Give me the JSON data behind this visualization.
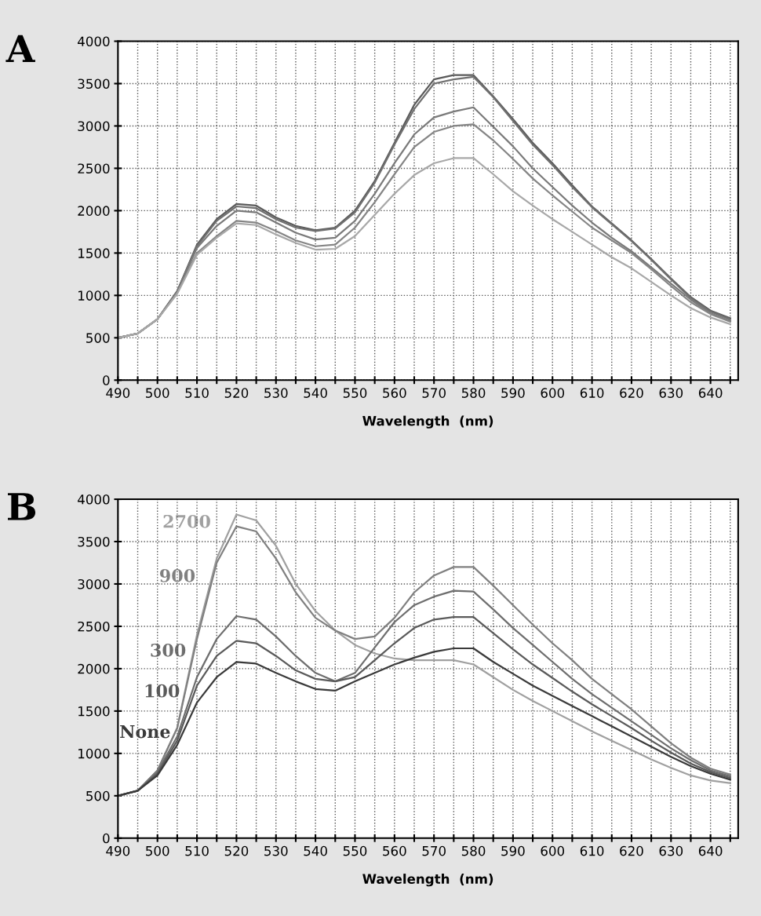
{
  "chart_data": [
    {
      "type": "line",
      "title": "A",
      "xlabel": "Wavelength  (nm)",
      "grid": true,
      "xlim": [
        490,
        647
      ],
      "ylim": [
        0,
        4000
      ],
      "xticks": [
        490,
        {
          "value": 495,
          "label": null
        },
        500,
        {
          "value": 505,
          "label": null
        },
        510,
        {
          "value": 515,
          "label": null
        },
        520,
        {
          "value": 525,
          "label": null
        },
        530,
        {
          "value": 535,
          "label": null
        },
        540,
        {
          "value": 545,
          "label": null
        },
        550,
        {
          "value": 555,
          "label": null
        },
        560,
        {
          "value": 565,
          "label": null
        },
        570,
        {
          "value": 575,
          "label": null
        },
        580,
        {
          "value": 585,
          "label": null
        },
        590,
        {
          "value": 595,
          "label": null
        },
        600,
        {
          "value": 605,
          "label": null
        },
        610,
        {
          "value": 615,
          "label": null
        },
        620,
        {
          "value": 625,
          "label": null
        },
        630,
        {
          "value": 635,
          "label": null
        },
        640,
        {
          "value": 645,
          "label": null
        }
      ],
      "yticks": [
        0,
        500,
        1000,
        1500,
        2000,
        2500,
        3000,
        3500,
        4000
      ],
      "x": [
        490,
        495,
        500,
        505,
        510,
        515,
        520,
        525,
        530,
        535,
        540,
        545,
        550,
        555,
        560,
        565,
        570,
        575,
        580,
        585,
        590,
        595,
        600,
        605,
        610,
        615,
        620,
        625,
        630,
        635,
        640,
        645
      ],
      "series": [
        {
          "color": "#5a5a5a",
          "values": [
            500,
            550,
            720,
            1050,
            1600,
            1900,
            2080,
            2060,
            1920,
            1820,
            1770,
            1800,
            2000,
            2350,
            2800,
            3250,
            3550,
            3600,
            3600,
            3350,
            3080,
            2800,
            2560,
            2300,
            2050,
            1850,
            1650,
            1430,
            1200,
            980,
            820,
            730
          ]
        },
        {
          "color": "#707070",
          "values": [
            500,
            550,
            720,
            1050,
            1580,
            1880,
            2050,
            2030,
            1900,
            1800,
            1760,
            1790,
            1980,
            2330,
            2780,
            3200,
            3500,
            3550,
            3580,
            3340,
            3060,
            2780,
            2540,
            2280,
            2040,
            1840,
            1640,
            1420,
            1190,
            970,
            810,
            720
          ]
        },
        {
          "color": "#7a7a7a",
          "values": [
            500,
            550,
            720,
            1040,
            1560,
            1820,
            2000,
            1980,
            1860,
            1740,
            1660,
            1680,
            1880,
            2200,
            2560,
            2900,
            3100,
            3170,
            3220,
            2990,
            2760,
            2500,
            2280,
            2060,
            1860,
            1680,
            1520,
            1330,
            1140,
            950,
            790,
            700
          ]
        },
        {
          "color": "#858585",
          "values": [
            500,
            550,
            720,
            1030,
            1500,
            1700,
            1880,
            1860,
            1760,
            1650,
            1580,
            1600,
            1800,
            2100,
            2430,
            2750,
            2930,
            3000,
            3020,
            2830,
            2610,
            2380,
            2180,
            1990,
            1800,
            1650,
            1500,
            1310,
            1110,
            920,
            780,
            690
          ]
        },
        {
          "color": "#a8a8a8",
          "values": [
            500,
            550,
            720,
            1020,
            1480,
            1680,
            1850,
            1830,
            1720,
            1620,
            1540,
            1550,
            1700,
            1950,
            2200,
            2420,
            2560,
            2620,
            2620,
            2430,
            2230,
            2060,
            1900,
            1750,
            1600,
            1450,
            1320,
            1160,
            1000,
            850,
            740,
            660
          ]
        }
      ]
    },
    {
      "type": "line",
      "title": "B",
      "xlabel": "Wavelength  (nm)",
      "grid": true,
      "xlim": [
        490,
        647
      ],
      "ylim": [
        0,
        4000
      ],
      "xticks": [
        490,
        {
          "value": 495,
          "label": null
        },
        500,
        {
          "value": 505,
          "label": null
        },
        510,
        {
          "value": 515,
          "label": null
        },
        520,
        {
          "value": 525,
          "label": null
        },
        530,
        {
          "value": 535,
          "label": null
        },
        540,
        {
          "value": 545,
          "label": null
        },
        550,
        {
          "value": 555,
          "label": null
        },
        560,
        {
          "value": 565,
          "label": null
        },
        570,
        {
          "value": 575,
          "label": null
        },
        580,
        {
          "value": 585,
          "label": null
        },
        590,
        {
          "value": 595,
          "label": null
        },
        600,
        {
          "value": 605,
          "label": null
        },
        610,
        {
          "value": 615,
          "label": null
        },
        620,
        {
          "value": 625,
          "label": null
        },
        630,
        {
          "value": 635,
          "label": null
        },
        640,
        {
          "value": 645,
          "label": null
        }
      ],
      "yticks": [
        0,
        500,
        1000,
        1500,
        2000,
        2500,
        3000,
        3500,
        4000
      ],
      "x": [
        490,
        495,
        500,
        505,
        510,
        515,
        520,
        525,
        530,
        535,
        540,
        545,
        550,
        555,
        560,
        565,
        570,
        575,
        580,
        585,
        590,
        595,
        600,
        605,
        610,
        615,
        620,
        625,
        630,
        635,
        640,
        645
      ],
      "series": [
        {
          "name": "2700",
          "color": "#a0a0a0",
          "values": [
            500,
            560,
            800,
            1300,
            2400,
            3300,
            3820,
            3750,
            3450,
            3000,
            2680,
            2450,
            2280,
            2180,
            2120,
            2100,
            2100,
            2100,
            2050,
            1900,
            1750,
            1620,
            1500,
            1380,
            1260,
            1150,
            1040,
            930,
            830,
            740,
            680,
            650
          ]
        },
        {
          "name": "900",
          "color": "#808080",
          "values": [
            500,
            560,
            800,
            1300,
            2350,
            3250,
            3680,
            3620,
            3300,
            2900,
            2600,
            2450,
            2350,
            2380,
            2600,
            2900,
            3100,
            3200,
            3200,
            2980,
            2750,
            2520,
            2300,
            2100,
            1880,
            1700,
            1520,
            1320,
            1120,
            950,
            820,
            750
          ]
        },
        {
          "name": "300",
          "color": "#6e6e6e",
          "values": [
            500,
            560,
            780,
            1200,
            1900,
            2350,
            2620,
            2580,
            2380,
            2150,
            1950,
            1850,
            1950,
            2250,
            2550,
            2750,
            2850,
            2920,
            2910,
            2700,
            2480,
            2280,
            2080,
            1880,
            1700,
            1540,
            1380,
            1220,
            1060,
            920,
            800,
            730
          ]
        },
        {
          "name": "100",
          "color": "#5a5a5a",
          "values": [
            500,
            560,
            760,
            1150,
            1800,
            2150,
            2330,
            2300,
            2150,
            1980,
            1880,
            1850,
            1900,
            2100,
            2300,
            2480,
            2580,
            2610,
            2610,
            2420,
            2230,
            2050,
            1890,
            1730,
            1580,
            1440,
            1300,
            1150,
            1010,
            880,
            780,
            710
          ]
        },
        {
          "name": "None",
          "color": "#3a3a3a",
          "values": [
            500,
            560,
            740,
            1100,
            1600,
            1900,
            2080,
            2060,
            1950,
            1850,
            1760,
            1740,
            1850,
            1950,
            2050,
            2130,
            2200,
            2240,
            2240,
            2080,
            1940,
            1800,
            1680,
            1560,
            1440,
            1320,
            1200,
            1080,
            960,
            850,
            760,
            690
          ]
        }
      ]
    }
  ]
}
